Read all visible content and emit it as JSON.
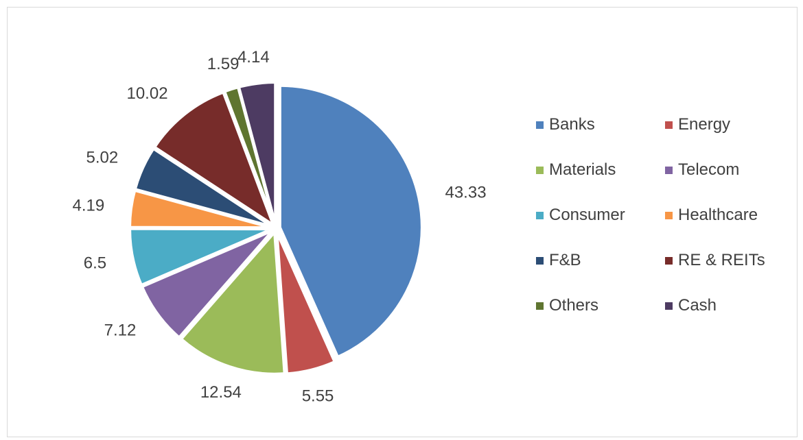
{
  "chart_data": {
    "type": "pie",
    "categories": [
      "Banks",
      "Energy",
      "Materials",
      "Telecom",
      "Consumer",
      "Healthcare",
      "F&B",
      "RE & REITs",
      "Others",
      "Cash"
    ],
    "values": [
      43.33,
      5.55,
      12.54,
      7.12,
      6.5,
      4.19,
      5.02,
      10.02,
      1.59,
      4.14
    ],
    "labels": [
      "43.33",
      "5.55",
      "12.54",
      "7.12",
      "6.5",
      "4.19",
      "5.02",
      "10.02",
      "1.59",
      "4.14"
    ],
    "colors": [
      "#4f81bd",
      "#c0504d",
      "#9bbb59",
      "#8064a2",
      "#4bacc6",
      "#f79646",
      "#2c4d75",
      "#772c2a",
      "#5f7530",
      "#4d3b62"
    ],
    "title": "",
    "legend_position": "right",
    "start_angle": "12 o'clock, clockwise",
    "exploded": true
  }
}
